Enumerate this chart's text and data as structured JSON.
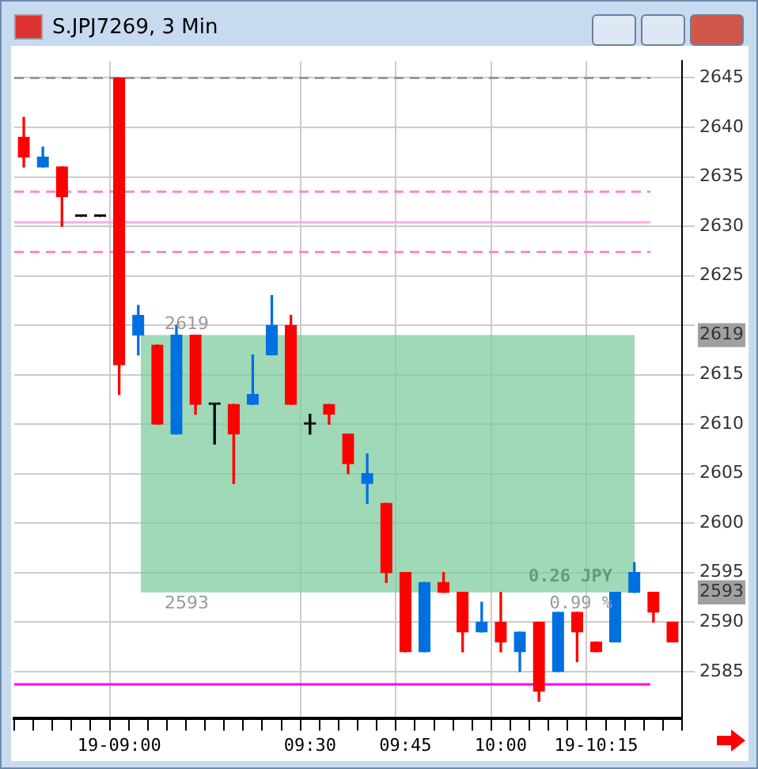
{
  "chart_data": {
    "type": "candlestick",
    "title": "S.JPJ7269, 3 Min",
    "categories": [
      null,
      null,
      null,
      null,
      null,
      "19-09:00",
      null,
      null,
      null,
      null,
      null,
      null,
      null,
      null,
      null,
      "09:30",
      null,
      null,
      null,
      null,
      "09:45",
      null,
      null,
      null,
      null,
      "10:00",
      null,
      null,
      null,
      null,
      "19-10:15",
      null,
      null,
      null,
      null
    ],
    "ohlc": [
      [
        2639,
        2641,
        2636,
        2637
      ],
      [
        2636,
        2638,
        2636,
        2637
      ],
      [
        2636,
        2636,
        2630,
        2633
      ],
      [
        2631,
        2631,
        2631,
        2631
      ],
      [
        2631,
        2631,
        2631,
        2631
      ],
      [
        2645,
        2645,
        2613,
        2616
      ],
      [
        2619,
        2622,
        2617,
        2621
      ],
      [
        2618,
        2618,
        2610,
        2610
      ],
      [
        2609,
        2620,
        2609,
        2619
      ],
      [
        2619,
        2619,
        2611,
        2612
      ],
      [
        2612,
        2612,
        2608,
        2612
      ],
      [
        2612,
        2612,
        2604,
        2609
      ],
      [
        2612,
        2617,
        2612,
        2613
      ],
      [
        2617,
        2623,
        2617,
        2620
      ],
      [
        2620,
        2621,
        2612,
        2612
      ],
      [
        2610,
        2611,
        2609,
        2610
      ],
      [
        2612,
        2612,
        2610,
        2611
      ],
      [
        2609,
        2609,
        2605,
        2606
      ],
      [
        2604,
        2607,
        2602,
        2605
      ],
      [
        2602,
        2602,
        2594,
        2595
      ],
      [
        2595,
        2595,
        2587,
        2587
      ],
      [
        2587,
        2594,
        2587,
        2594
      ],
      [
        2594,
        2595,
        2593,
        2593
      ],
      [
        2593,
        2593,
        2587,
        2589
      ],
      [
        2589,
        2592,
        2589,
        2590
      ],
      [
        2590,
        2593,
        2587,
        2588
      ],
      [
        2587,
        2589,
        2585,
        2589
      ],
      [
        2590,
        2590,
        2582,
        2583
      ],
      [
        2585,
        2591,
        2585,
        2591
      ],
      [
        2591,
        2591,
        2586,
        2589
      ],
      [
        2588,
        2588,
        2587,
        2587
      ],
      [
        2588,
        2593,
        2588,
        2593
      ],
      [
        2593,
        2596,
        2593,
        2595
      ],
      [
        2593,
        2593,
        2590,
        2591
      ],
      [
        2590,
        2590,
        2588,
        2588
      ]
    ],
    "colors": [
      "#ff0000",
      "#0070e0",
      "#ff0000",
      "#000000",
      "#000000",
      "#ff0000",
      "#0070e0",
      "#ff0000",
      "#0070e0",
      "#ff0000",
      "#000000",
      "#ff0000",
      "#0070e0",
      "#0070e0",
      "#ff0000",
      "#000000",
      "#ff0000",
      "#ff0000",
      "#0070e0",
      "#ff0000",
      "#ff0000",
      "#0070e0",
      "#ff0000",
      "#ff0000",
      "#0070e0",
      "#ff0000",
      "#0070e0",
      "#ff0000",
      "#0070e0",
      "#ff0000",
      "#ff0000",
      "#0070e0",
      "#0070e0",
      "#ff0000",
      "#ff0000"
    ],
    "ylim": [
      2580.3,
      2646.7
    ],
    "yticks": [
      2585,
      2590,
      2593,
      2595,
      2600,
      2605,
      2610,
      2615,
      2619,
      {
        "value": 2620,
        "label": null
      },
      2625,
      2630,
      2635,
      2640,
      2645
    ],
    "grid": true,
    "ref_lines": [
      {
        "axis": "y",
        "value": 2645,
        "color": "#999999",
        "line_style": "dashed"
      },
      {
        "axis": "y",
        "value": 2633.5,
        "color": "#ff88cc",
        "line_style": "dashed"
      },
      {
        "axis": "y",
        "value": 2630.4,
        "color": "#ffaadd",
        "line_style": "solid"
      },
      {
        "axis": "y",
        "value": 2627.4,
        "color": "#ff88cc",
        "line_style": "dashed"
      },
      {
        "axis": "y",
        "value": 2583.7,
        "color": "#ff00ff",
        "line_style": "solid"
      }
    ],
    "bands": [
      {
        "axis": "y",
        "from": 2593,
        "to": 2619,
        "color": "#7fcc9f"
      }
    ],
    "annotations": [
      {
        "text": "2619",
        "y": 2619
      },
      {
        "text": "2593",
        "y": 2593
      },
      "0.26 JPY",
      "0.99 %"
    ]
  }
}
